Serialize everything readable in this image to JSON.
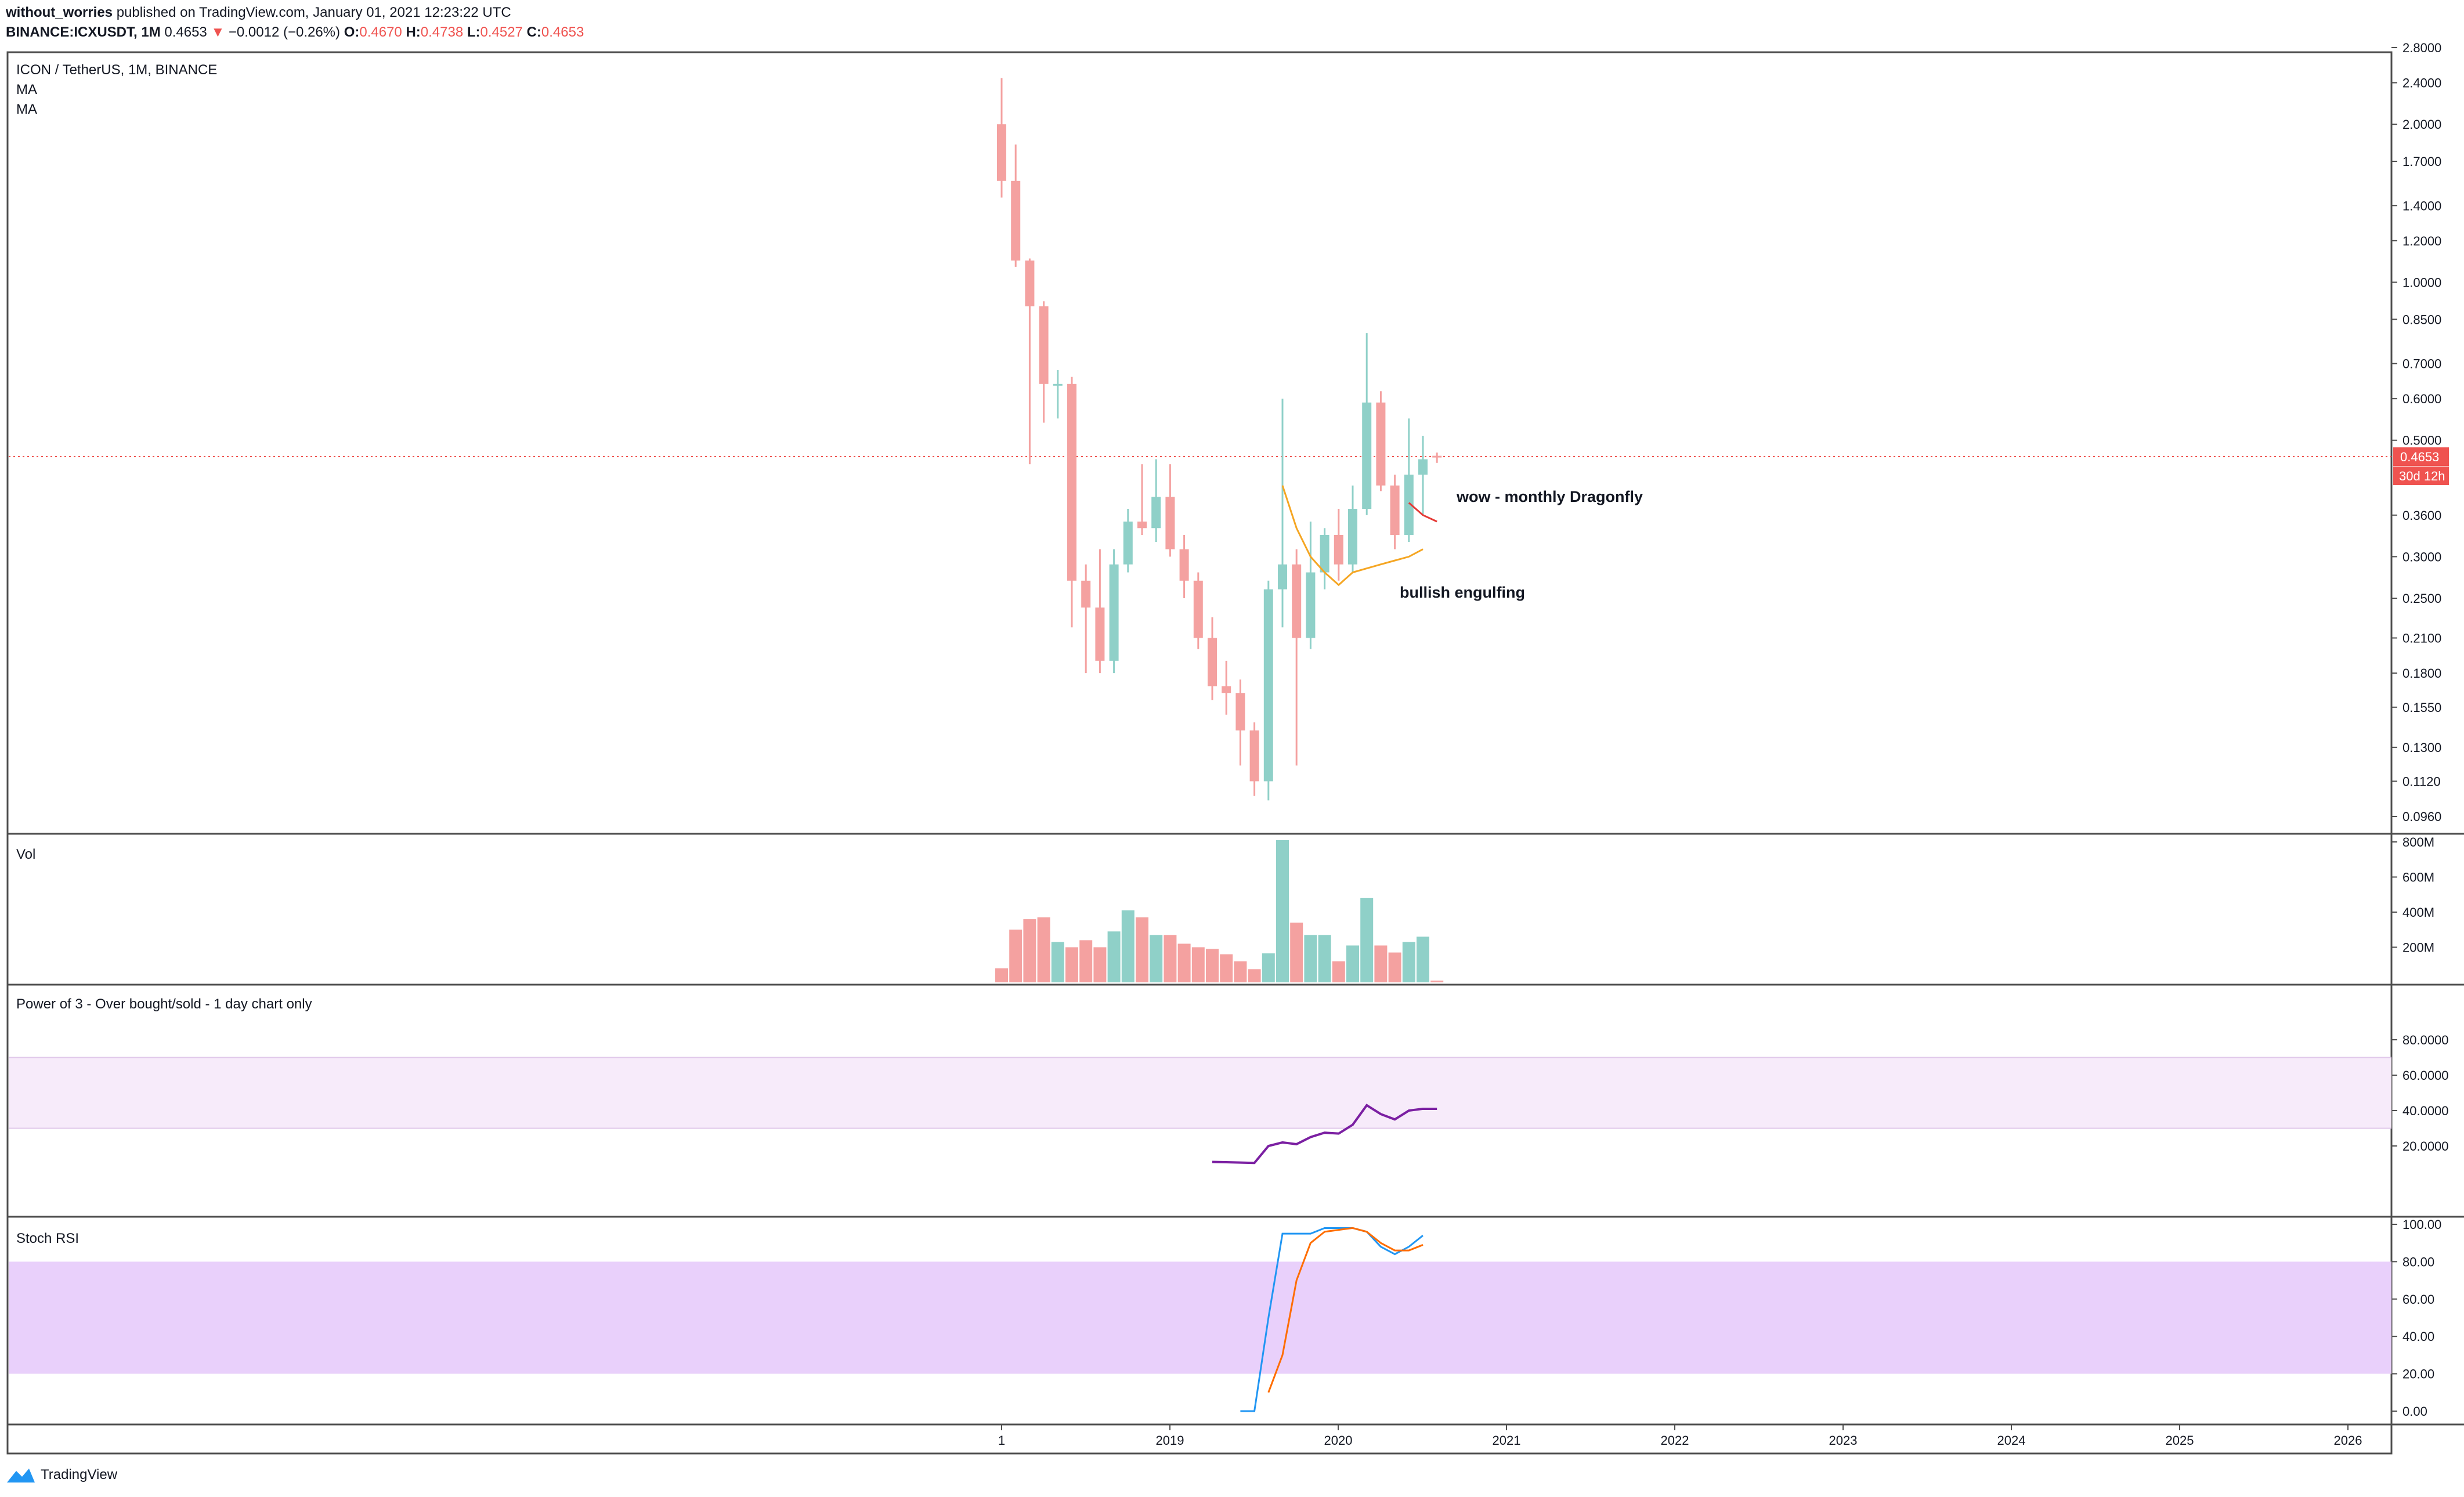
{
  "header": {
    "author": "without_worries",
    "published_text": "published on TradingView.com, January 01, 2021 12:23:22 UTC",
    "symbol": "BINANCE:ICXUSDT, 1M",
    "last": "0.4653",
    "change": "−0.0012 (−0.26%)",
    "o_label": "O:",
    "o": "0.4670",
    "h_label": "H:",
    "h": "0.4738",
    "l_label": "L:",
    "l": "0.4527",
    "c_label": "C:",
    "c": "0.4653"
  },
  "price_pane": {
    "legend_title": "ICON / TetherUS, 1M, BINANCE",
    "legend_ma1": "MA",
    "legend_ma2": "MA",
    "last_price_label": "0.4653",
    "countdown_label": "30d 12h",
    "annotation_dragonfly": "wow - monthly Dragonfly",
    "annotation_engulfing": "bullish engulfing"
  },
  "vol_pane": {
    "title": "Vol"
  },
  "power_pane": {
    "title": "Power of 3 - Over bought/sold - 1 day chart only"
  },
  "stoch_pane": {
    "title": "Stoch RSI"
  },
  "footer": {
    "brand": "TradingView"
  },
  "colors": {
    "up": "#26a69a",
    "down": "#ef5350",
    "up_fill": "#8fd0c8",
    "down_fill": "#f4a1a0",
    "power_line": "#7b1fa2",
    "power_band": "#f7ebfa",
    "stoch_k": "#2196f3",
    "stoch_d": "#ff6d00",
    "stoch_band": "#e9d0fb",
    "ma_orange": "#f5a623",
    "ma_red": "#e53935"
  },
  "chart_data": [
    {
      "type": "candlestick",
      "title": "ICON / TetherUS, 1M, BINANCE",
      "scale": "log",
      "y_ticks": [
        "2.8000",
        "2.4000",
        "2.0000",
        "1.7000",
        "1.4000",
        "1.2000",
        "1.0000",
        "0.8500",
        "0.7000",
        "0.6000",
        "0.5000",
        "0.4653",
        "0.3600",
        "0.3000",
        "0.2500",
        "0.2100",
        "0.1800",
        "0.1550",
        "0.1300",
        "0.1120",
        "0.0960"
      ],
      "x_ticks": [
        "1",
        "2019",
        "2020",
        "2021",
        "2022",
        "2023",
        "2024",
        "2025",
        "2026"
      ],
      "candles": [
        {
          "o": 2.0,
          "h": 2.45,
          "l": 1.45,
          "c": 1.56
        },
        {
          "o": 1.56,
          "h": 1.83,
          "l": 1.07,
          "c": 1.1
        },
        {
          "o": 1.1,
          "h": 1.11,
          "l": 0.45,
          "c": 0.9
        },
        {
          "o": 0.9,
          "h": 0.92,
          "l": 0.54,
          "c": 0.64
        },
        {
          "o": 0.64,
          "h": 0.68,
          "l": 0.55,
          "c": 0.64
        },
        {
          "o": 0.64,
          "h": 0.66,
          "l": 0.22,
          "c": 0.27
        },
        {
          "o": 0.27,
          "h": 0.29,
          "l": 0.18,
          "c": 0.24
        },
        {
          "o": 0.24,
          "h": 0.31,
          "l": 0.18,
          "c": 0.19
        },
        {
          "o": 0.19,
          "h": 0.31,
          "l": 0.18,
          "c": 0.29
        },
        {
          "o": 0.29,
          "h": 0.37,
          "l": 0.28,
          "c": 0.35
        },
        {
          "o": 0.35,
          "h": 0.45,
          "l": 0.33,
          "c": 0.34
        },
        {
          "o": 0.34,
          "h": 0.46,
          "l": 0.32,
          "c": 0.39
        },
        {
          "o": 0.39,
          "h": 0.45,
          "l": 0.3,
          "c": 0.31
        },
        {
          "o": 0.31,
          "h": 0.33,
          "l": 0.25,
          "c": 0.27
        },
        {
          "o": 0.27,
          "h": 0.28,
          "l": 0.2,
          "c": 0.21
        },
        {
          "o": 0.21,
          "h": 0.23,
          "l": 0.16,
          "c": 0.17
        },
        {
          "o": 0.17,
          "h": 0.19,
          "l": 0.15,
          "c": 0.165
        },
        {
          "o": 0.165,
          "h": 0.175,
          "l": 0.12,
          "c": 0.14
        },
        {
          "o": 0.14,
          "h": 0.145,
          "l": 0.105,
          "c": 0.112
        },
        {
          "o": 0.112,
          "h": 0.27,
          "l": 0.103,
          "c": 0.26
        },
        {
          "o": 0.26,
          "h": 0.6,
          "l": 0.22,
          "c": 0.29
        },
        {
          "o": 0.29,
          "h": 0.31,
          "l": 0.12,
          "c": 0.21
        },
        {
          "o": 0.21,
          "h": 0.35,
          "l": 0.2,
          "c": 0.28
        },
        {
          "o": 0.28,
          "h": 0.34,
          "l": 0.26,
          "c": 0.33
        },
        {
          "o": 0.33,
          "h": 0.37,
          "l": 0.27,
          "c": 0.29
        },
        {
          "o": 0.29,
          "h": 0.41,
          "l": 0.28,
          "c": 0.37
        },
        {
          "o": 0.37,
          "h": 0.8,
          "l": 0.36,
          "c": 0.59
        },
        {
          "o": 0.59,
          "h": 0.62,
          "l": 0.4,
          "c": 0.41
        },
        {
          "o": 0.41,
          "h": 0.43,
          "l": 0.31,
          "c": 0.33
        },
        {
          "o": 0.33,
          "h": 0.55,
          "l": 0.32,
          "c": 0.43
        },
        {
          "o": 0.43,
          "h": 0.51,
          "l": 0.36,
          "c": 0.46
        },
        {
          "o": 0.467,
          "h": 0.4738,
          "l": 0.4527,
          "c": 0.4653
        }
      ],
      "ma_orange": {
        "start_index": 20,
        "values": [
          0.41,
          0.34,
          0.3,
          0.28,
          0.265,
          0.28,
          0.285,
          0.29,
          0.295,
          0.3,
          0.31
        ]
      },
      "ma_red": {
        "start_index": 29,
        "values": [
          0.38,
          0.36,
          0.35
        ]
      }
    },
    {
      "type": "bar",
      "title": "Vol",
      "y_ticks": [
        "800M",
        "600M",
        "400M",
        "200M"
      ],
      "values_m": [
        80,
        300,
        360,
        370,
        230,
        200,
        240,
        200,
        290,
        410,
        370,
        270,
        270,
        220,
        200,
        190,
        160,
        120,
        75,
        165,
        810,
        340,
        270,
        270,
        120,
        210,
        480,
        210,
        170,
        230,
        260,
        10
      ]
    },
    {
      "type": "line",
      "title": "Power of 3 - Over bought/sold - 1 day chart only",
      "y_ticks": [
        "80.0000",
        "60.0000",
        "40.0000",
        "20.0000"
      ],
      "band": [
        30,
        70
      ],
      "start_index": 15,
      "values": [
        11,
        10.8,
        10.6,
        10.4,
        20,
        22,
        21,
        25,
        27.5,
        27,
        32,
        43,
        38,
        35,
        40,
        41,
        41
      ]
    },
    {
      "type": "line",
      "title": "Stoch RSI",
      "y_ticks": [
        "100.00",
        "80.00",
        "60.00",
        "40.00",
        "20.00",
        "0.00"
      ],
      "band": [
        20,
        80
      ],
      "series": [
        {
          "values_start_index": 17,
          "values": [
            0,
            0,
            50,
            95,
            95,
            95,
            98,
            98,
            98,
            96,
            88,
            84,
            88,
            94
          ]
        },
        {
          "values_start_index": 19,
          "values": [
            10,
            30,
            70,
            90,
            96,
            97,
            98,
            96,
            90,
            86,
            86,
            89
          ]
        }
      ]
    }
  ]
}
